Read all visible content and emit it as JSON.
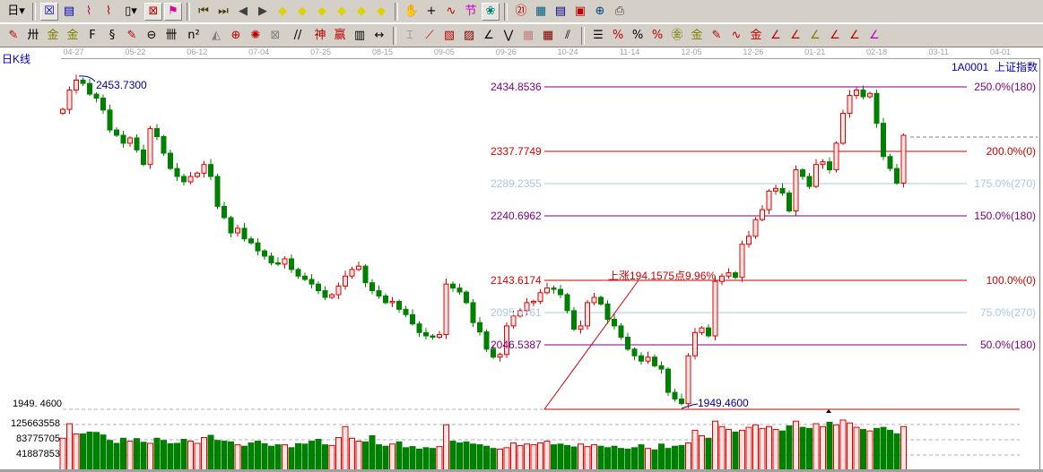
{
  "toolbar_row1": [
    {
      "name": "period-dropdown",
      "glyph": "日▾",
      "color": "#000"
    },
    {
      "sep": true
    },
    {
      "name": "kline-view-icon",
      "glyph": "☒",
      "color": "#0000c0",
      "on": true
    },
    {
      "name": "notes-icon",
      "glyph": "▤",
      "color": "#0000c0"
    },
    {
      "name": "wave3-icon",
      "glyph": "⌇",
      "color": "#c00080"
    },
    {
      "name": "wave9-icon",
      "glyph": "⌇",
      "color": "#c00000"
    },
    {
      "name": "candle-type-dropdown",
      "glyph": "▯▾",
      "color": "#000"
    },
    {
      "name": "hide-icon",
      "glyph": "⊠",
      "color": "#c00000",
      "on": true
    },
    {
      "name": "flag-icon",
      "glyph": "⚑",
      "color": "#e000a0",
      "on": true
    },
    {
      "sep": true
    },
    {
      "name": "first-icon",
      "glyph": "⏮",
      "color": "#404000"
    },
    {
      "name": "last-icon",
      "glyph": "⏭",
      "color": "#404000"
    },
    {
      "name": "prev-icon",
      "glyph": "◀",
      "color": "#404040"
    },
    {
      "name": "next-icon",
      "glyph": "▶",
      "color": "#404040"
    },
    {
      "name": "arrow-left-icon",
      "glyph": "◆",
      "color": "#e0d000"
    },
    {
      "name": "arrow-right-icon",
      "glyph": "◆",
      "color": "#e0d000"
    },
    {
      "name": "expand-h-icon",
      "glyph": "◆",
      "color": "#e0d000"
    },
    {
      "name": "compress-icon",
      "glyph": "◆",
      "color": "#e0d000"
    },
    {
      "name": "expand-icon",
      "glyph": "◆",
      "color": "#e0d000"
    },
    {
      "name": "move-icon",
      "glyph": "◆",
      "color": "#e0d000"
    },
    {
      "sep": true
    },
    {
      "name": "hand-icon",
      "glyph": "✋",
      "color": "#000"
    },
    {
      "name": "crosshair-icon",
      "glyph": "+",
      "color": "#000"
    },
    {
      "name": "line-point-icon",
      "glyph": "∿",
      "color": "#c00000"
    },
    {
      "name": "node-icon",
      "glyph": "节",
      "color": "#c000c0"
    },
    {
      "name": "brain-icon",
      "glyph": "❀",
      "color": "#008080",
      "on": true
    },
    {
      "sep": true
    },
    {
      "name": "calendar-icon",
      "glyph": "㉑",
      "color": "#c00000"
    },
    {
      "name": "calculator-icon",
      "glyph": "▦",
      "color": "#006080"
    },
    {
      "name": "document-icon",
      "glyph": "▤",
      "color": "#000080"
    },
    {
      "name": "save-icon",
      "glyph": "▣",
      "color": "#c00000"
    },
    {
      "name": "network-icon",
      "glyph": "⊕",
      "color": "#004080"
    },
    {
      "name": "print-icon",
      "glyph": "⎙",
      "color": "#404040"
    }
  ],
  "toolbar_row2": [
    {
      "name": "pen-icon",
      "glyph": "✎",
      "color": "#c00000"
    },
    {
      "name": "parallel-lines-icon",
      "glyph": "卅",
      "color": "#000"
    },
    {
      "name": "gold-line-icon",
      "glyph": "金",
      "color": "#808000"
    },
    {
      "name": "gold-line2-icon",
      "glyph": "金",
      "color": "#808000"
    },
    {
      "name": "f-line-icon",
      "glyph": "F",
      "color": "#000"
    },
    {
      "name": "spiral-icon",
      "glyph": "§",
      "color": "#000"
    },
    {
      "name": "marker-icon",
      "glyph": "✎",
      "color": "#c00000"
    },
    {
      "name": "circle-ruler-icon",
      "glyph": "⊖",
      "color": "#000"
    },
    {
      "name": "bars-icon",
      "glyph": "卌",
      "color": "#000"
    },
    {
      "name": "square-icon",
      "glyph": "n²",
      "color": "#000"
    },
    {
      "name": "triangle-icon",
      "glyph": "◭",
      "color": "#808080"
    },
    {
      "name": "target-icon",
      "glyph": "⊕",
      "color": "#c00000"
    },
    {
      "name": "radar-icon",
      "glyph": "✺",
      "color": "#c00000"
    },
    {
      "name": "box-target-icon",
      "glyph": "⊠",
      "color": "#808080"
    },
    {
      "name": "angle-lines-icon",
      "glyph": "//",
      "color": "#000"
    },
    {
      "name": "god-line-icon",
      "glyph": "神",
      "color": "#c00000"
    },
    {
      "name": "win-line-icon",
      "glyph": "赢",
      "color": "#c00000"
    },
    {
      "name": "grid-123-icon",
      "glyph": "▥",
      "color": "#000"
    },
    {
      "name": "width-icon",
      "glyph": "↔",
      "color": "#000"
    },
    {
      "sep": true
    },
    {
      "name": "box-line-icon",
      "glyph": "⌶",
      "color": "#808080"
    },
    {
      "name": "fan-icon",
      "glyph": "⟋",
      "color": "#c00000"
    },
    {
      "name": "gann-box-icon",
      "glyph": "▧",
      "color": "#c00000"
    },
    {
      "name": "gann-fan-icon",
      "glyph": "▨",
      "color": "#800000"
    },
    {
      "name": "angle-icon",
      "glyph": "∠",
      "color": "#000"
    },
    {
      "name": "zigzag-icon",
      "glyph": "⋁",
      "color": "#000"
    },
    {
      "name": "grid-icon",
      "glyph": "▦",
      "color": "#c08080"
    },
    {
      "name": "grid2-icon",
      "glyph": "▦",
      "color": "#800000"
    },
    {
      "name": "channel-icon",
      "glyph": "⫽",
      "color": "#000"
    },
    {
      "sep": true
    },
    {
      "name": "ruler-icon",
      "glyph": "☰",
      "color": "#000"
    },
    {
      "name": "percent-line-icon",
      "glyph": "%",
      "color": "#c00000"
    },
    {
      "name": "percent-icon",
      "glyph": "%",
      "color": "#000"
    },
    {
      "name": "percent-lines-icon",
      "glyph": "%",
      "color": "#c00000"
    },
    {
      "name": "gold-circle-icon",
      "glyph": "㊎",
      "color": "#808000"
    },
    {
      "name": "gold-lines-icon",
      "glyph": "金",
      "color": "#808000"
    },
    {
      "name": "pen-bar-icon",
      "glyph": "✎",
      "color": "#c00000"
    },
    {
      "name": "wave-line-icon",
      "glyph": "∿",
      "color": "#c00000"
    },
    {
      "name": "gold-bar-icon",
      "glyph": "金",
      "color": "#c00000"
    },
    {
      "name": "j-angle-icon",
      "glyph": "∠",
      "color": "#c00000"
    },
    {
      "name": "f-angle-icon",
      "glyph": "∠",
      "color": "#c00000"
    },
    {
      "name": "gold-angle-icon",
      "glyph": "∠",
      "color": "#808000"
    },
    {
      "name": "god-angle-icon",
      "glyph": "∠",
      "color": "#c00000"
    },
    {
      "name": "win-angle-icon",
      "glyph": "∠",
      "color": "#c00000"
    },
    {
      "name": "four-angle-icon",
      "glyph": "∠",
      "color": "#c000c0"
    }
  ],
  "header": {
    "period_label": "日K线",
    "symbol": "1A0001",
    "name": "上证指数"
  },
  "chart_data": {
    "type": "candlestick",
    "date_ticks": [
      "04-27",
      "05-22",
      "06-12",
      "07-04",
      "07-25",
      "08-15",
      "09-05",
      "09-26",
      "10-24",
      "11-14",
      "12-05",
      "12-26",
      "01-21",
      "02-18",
      "03-11",
      "04-01"
    ],
    "ylim": [
      1949.46,
      2434.8536
    ],
    "high_label": "2453.7300",
    "low_label": "1949.4600",
    "left_axis_label": "1949. 4600",
    "close": [
      2401,
      2430,
      2445,
      2440,
      2424,
      2418,
      2400,
      2370,
      2362,
      2350,
      2358,
      2340,
      2318,
      2372,
      2360,
      2335,
      2312,
      2300,
      2292,
      2300,
      2305,
      2318,
      2300,
      2255,
      2238,
      2215,
      2222,
      2206,
      2200,
      2188,
      2180,
      2170,
      2168,
      2176,
      2160,
      2150,
      2145,
      2138,
      2128,
      2118,
      2122,
      2135,
      2150,
      2160,
      2165,
      2140,
      2128,
      2120,
      2110,
      2112,
      2100,
      2092,
      2078,
      2065,
      2060,
      2058,
      2062,
      2138,
      2132,
      2126,
      2110,
      2080,
      2066,
      2040,
      2028,
      2032,
      2075,
      2090,
      2098,
      2110,
      2112,
      2125,
      2132,
      2130,
      2122,
      2098,
      2070,
      2075,
      2110,
      2118,
      2108,
      2085,
      2075,
      2058,
      2040,
      2030,
      2022,
      2028,
      2015,
      2010,
      1975,
      1965,
      1958,
      2030,
      2065,
      2072,
      2060,
      2142,
      2150,
      2155,
      2148,
      2198,
      2210,
      2235,
      2250,
      2278,
      2282,
      2275,
      2248,
      2310,
      2300,
      2285,
      2318,
      2322,
      2310,
      2350,
      2395,
      2422,
      2430,
      2420,
      2425,
      2380,
      2330,
      2312,
      2290,
      2362
    ],
    "volume": [
      88000000,
      128000000,
      100000000,
      100000000,
      105000000,
      104000000,
      97000000,
      82000000,
      74000000,
      88000000,
      80000000,
      87000000,
      77000000,
      74000000,
      88000000,
      82000000,
      73000000,
      74000000,
      85000000,
      80000000,
      74000000,
      90000000,
      96000000,
      82000000,
      80000000,
      78000000,
      70000000,
      66000000,
      75000000,
      80000000,
      73000000,
      66000000,
      70000000,
      70000000,
      62000000,
      73000000,
      72000000,
      80000000,
      85000000,
      70000000,
      68000000,
      90000000,
      120000000,
      88000000,
      80000000,
      78000000,
      95000000,
      70000000,
      66000000,
      72000000,
      78000000,
      62000000,
      65000000,
      58000000,
      62000000,
      60000000,
      65000000,
      125000000,
      80000000,
      75000000,
      78000000,
      72000000,
      70000000,
      66000000,
      60000000,
      58000000,
      62000000,
      75000000,
      68000000,
      72000000,
      70000000,
      75000000,
      80000000,
      70000000,
      72000000,
      68000000,
      64000000,
      72000000,
      65000000,
      70000000,
      66000000,
      62000000,
      66000000,
      60000000,
      58000000,
      62000000,
      70000000,
      60000000,
      56000000,
      72000000,
      60000000,
      66000000,
      68000000,
      75000000,
      110000000,
      95000000,
      88000000,
      135000000,
      120000000,
      112000000,
      105000000,
      110000000,
      118000000,
      125000000,
      115000000,
      120000000,
      112000000,
      108000000,
      122000000,
      135000000,
      118000000,
      115000000,
      128000000,
      120000000,
      132000000,
      125000000,
      138000000,
      130000000,
      118000000,
      112000000,
      108000000,
      115000000,
      118000000,
      110000000,
      100000000,
      120000000
    ],
    "volume_ticks": [
      "125663558",
      "83775705",
      "41887853"
    ],
    "volume_tick_values": [
      125663558,
      83775705,
      41887853
    ],
    "fib_levels": [
      {
        "price": "2434.8536",
        "value": 2434.8536,
        "label": "250.0%(180)",
        "color": "#800080"
      },
      {
        "price": "2337.7749",
        "value": 2337.7749,
        "label": "200.0%(0)",
        "color": "#d00000"
      },
      {
        "price": "2289.2355",
        "value": 2289.2355,
        "label": "175.0%(270)",
        "color": "#a8c8e0"
      },
      {
        "price": "2240.6962",
        "value": 2240.6962,
        "label": "150.0%(180)",
        "color": "#800080"
      },
      {
        "price": "2143.6174",
        "value": 2143.6174,
        "label": "100.0%(0)",
        "color": "#d00000"
      },
      {
        "price": "2095.0761",
        "value": 2095.0761,
        "label": "75.0%(270)",
        "color": "#a8c8e0"
      },
      {
        "price": "2046.5387",
        "value": 2046.5387,
        "label": "50.0%(180)",
        "color": "#800080"
      }
    ],
    "rise_annotation": "上涨194.1575点9.96%",
    "colors": {
      "up": "#e00000",
      "up_fill": "#ffe4e4",
      "down": "#008000",
      "label_blue": "#000099"
    }
  }
}
